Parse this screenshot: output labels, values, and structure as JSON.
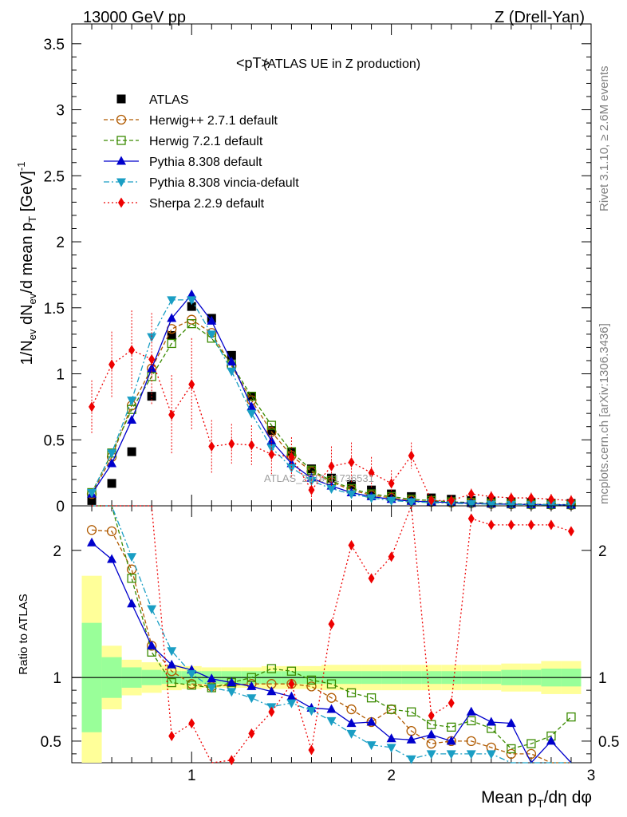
{
  "header": {
    "energy": "13000 GeV pp",
    "process": "Z (Drell-Yan)"
  },
  "side": {
    "rivet": "Rivet 3.1.10, ≥ 2.6M events",
    "mcplots": "mcplots.cern.ch [arXiv:1306.3436]"
  },
  "chart_data": [
    {
      "type": "line",
      "title": "<pT>",
      "subtitle": "(ATLAS UE in Z production)",
      "watermark": "ATLAS_2019_I1736531",
      "ylabel": "1/N_ev dN_ev/d mean p_T [GeV]^-1",
      "xlim": [
        0.4,
        3.0
      ],
      "ylim": [
        0,
        3.65
      ],
      "yticks": [
        0,
        0.5,
        1,
        1.5,
        2,
        2.5,
        3,
        3.5
      ],
      "ytick_labels": [
        "0",
        "0.5",
        "1",
        "1.5",
        "2",
        "2.5",
        "3",
        "3.5"
      ],
      "x": [
        0.5,
        0.6,
        0.7,
        0.8,
        0.9,
        1.0,
        1.1,
        1.2,
        1.3,
        1.4,
        1.5,
        1.6,
        1.7,
        1.8,
        1.9,
        2.0,
        2.1,
        2.2,
        2.3,
        2.4,
        2.5,
        2.6,
        2.7,
        2.8,
        2.9
      ],
      "series": [
        {
          "name": "ATLAS",
          "color": "#000000",
          "marker": "square-filled",
          "dash": "none",
          "values": [
            0.04,
            0.17,
            0.41,
            0.83,
            1.29,
            1.51,
            1.42,
            1.14,
            0.83,
            0.57,
            0.41,
            0.28,
            0.21,
            0.16,
            0.12,
            0.09,
            0.07,
            0.06,
            0.05,
            0.04,
            0.035,
            0.03,
            0.025,
            0.02,
            0.018
          ]
        },
        {
          "name": "Herwig++ 2.7.1 default",
          "color": "#b05a00",
          "marker": "circle-open",
          "dash": "5,3",
          "values": [
            0.09,
            0.37,
            0.76,
            1.04,
            1.34,
            1.41,
            1.31,
            1.06,
            0.8,
            0.56,
            0.38,
            0.26,
            0.18,
            0.12,
            0.08,
            0.06,
            0.04,
            0.03,
            0.025,
            0.02,
            0.015,
            0.012,
            0.01,
            0.008,
            0.007
          ]
        },
        {
          "name": "Herwig 7.2.1 default",
          "color": "#3a8a00",
          "marker": "square-open",
          "dash": "5,3",
          "values": [
            0.1,
            0.4,
            0.73,
            0.98,
            1.23,
            1.38,
            1.27,
            1.07,
            0.83,
            0.61,
            0.41,
            0.27,
            0.19,
            0.13,
            0.09,
            0.07,
            0.05,
            0.04,
            0.03,
            0.025,
            0.02,
            0.015,
            0.012,
            0.01,
            0.009
          ]
        },
        {
          "name": "Pythia 8.308 default",
          "color": "#0000cc",
          "marker": "triangle-up",
          "dash": "none",
          "values": [
            0.09,
            0.32,
            0.65,
            1.04,
            1.42,
            1.6,
            1.4,
            1.09,
            0.75,
            0.49,
            0.32,
            0.21,
            0.15,
            0.1,
            0.07,
            0.05,
            0.035,
            0.03,
            0.025,
            0.02,
            0.015,
            0.012,
            0.01,
            0.008,
            0.007
          ]
        },
        {
          "name": "Pythia 8.308 vincia-default",
          "color": "#1a9ec4",
          "marker": "triangle-down",
          "dash": "7,3,2,3",
          "values": [
            0.1,
            0.4,
            0.8,
            1.28,
            1.56,
            1.56,
            1.3,
            1.02,
            0.7,
            0.44,
            0.29,
            0.19,
            0.13,
            0.09,
            0.06,
            0.04,
            0.03,
            0.025,
            0.02,
            0.015,
            0.012,
            0.01,
            0.008,
            0.007,
            0.006
          ]
        },
        {
          "name": "Sherpa 2.2.9 default",
          "color": "#ee0000",
          "marker": "diamond",
          "dash": "2,3",
          "values": [
            0.75,
            1.07,
            1.18,
            1.11,
            0.69,
            0.92,
            0.45,
            0.47,
            0.46,
            0.39,
            0.37,
            0.12,
            0.3,
            0.33,
            0.25,
            0.17,
            0.38,
            0.04,
            0.04,
            0.09,
            0.07,
            0.06,
            0.06,
            0.05,
            0.04
          ],
          "errors": [
            0.2,
            0.25,
            0.3,
            0.35,
            0.3,
            0.35,
            0.2,
            0.15,
            0.15,
            0.15,
            0.15,
            0.08,
            0.15,
            0.15,
            0.12,
            0.1,
            0.1,
            0.04,
            0.04,
            0.04,
            0.04,
            0.04,
            0.04,
            0.04,
            0.04
          ]
        }
      ]
    },
    {
      "type": "line",
      "ylabel": "Ratio to ATLAS",
      "xlabel": "Mean p_T/dη dφ",
      "xlim": [
        0.4,
        3.0
      ],
      "ylim": [
        0.33,
        2.35
      ],
      "xticks": [
        1,
        2,
        3
      ],
      "xtick_labels": [
        "1",
        "2",
        "3"
      ],
      "yticks": [
        0.5,
        1,
        2
      ],
      "ytick_labels": [
        "0.5",
        "1",
        "2"
      ],
      "band_inner": [
        0.43,
        0.16,
        0.08,
        0.06,
        0.05,
        0.05,
        0.05,
        0.05,
        0.05,
        0.05,
        0.05,
        0.05,
        0.05,
        0.05,
        0.05,
        0.05,
        0.05,
        0.05,
        0.05,
        0.05,
        0.05,
        0.06,
        0.06,
        0.07,
        0.07
      ],
      "band_outer": [
        0.8,
        0.25,
        0.14,
        0.12,
        0.1,
        0.09,
        0.08,
        0.08,
        0.08,
        0.09,
        0.09,
        0.09,
        0.1,
        0.1,
        0.1,
        0.1,
        0.1,
        0.1,
        0.1,
        0.1,
        0.1,
        0.11,
        0.11,
        0.13,
        0.13
      ],
      "series": [
        {
          "name": "Herwig++ 2.7.1 default",
          "values": [
            2.16,
            2.15,
            1.85,
            1.25,
            1.05,
            0.95,
            0.93,
            0.94,
            0.95,
            0.95,
            0.95,
            0.93,
            0.84,
            0.75,
            0.65,
            0.75,
            0.58,
            0.48,
            0.5,
            0.5,
            0.45,
            0.4,
            0.4,
            0.33,
            0.3
          ]
        },
        {
          "name": "Herwig 7.2.1 default",
          "values": [
            2.35,
            2.35,
            1.78,
            1.2,
            0.96,
            0.94,
            0.92,
            0.96,
            1.0,
            1.07,
            1.05,
            0.98,
            0.95,
            0.88,
            0.84,
            0.75,
            0.73,
            0.63,
            0.61,
            0.66,
            0.6,
            0.44,
            0.48,
            0.54,
            0.69
          ]
        },
        {
          "name": "Pythia 8.308 default",
          "values": [
            2.06,
            1.93,
            1.58,
            1.25,
            1.1,
            1.06,
            0.99,
            0.96,
            0.93,
            0.89,
            0.85,
            0.76,
            0.75,
            0.64,
            0.65,
            0.52,
            0.51,
            0.55,
            0.5,
            0.73,
            0.65,
            0.64,
            0.3,
            0.5,
            0.3
          ]
        },
        {
          "name": "Pythia 8.308 vincia-default",
          "values": [
            2.35,
            2.35,
            1.95,
            1.54,
            1.21,
            1.03,
            0.92,
            0.89,
            0.84,
            0.77,
            0.8,
            0.74,
            0.66,
            0.56,
            0.47,
            0.45,
            0.36,
            0.4,
            0.4,
            0.4,
            0.4,
            0.33,
            0.33,
            0.33,
            0.33
          ]
        },
        {
          "name": "Sherpa 2.2.9 default",
          "values": [
            2.35,
            2.35,
            2.35,
            2.35,
            0.54,
            0.64,
            0.25,
            0.35,
            0.56,
            0.73,
            0.95,
            0.43,
            1.42,
            2.04,
            1.78,
            1.95,
            2.35,
            0.7,
            0.8,
            2.25,
            2.2,
            2.2,
            2.2,
            2.2,
            2.15
          ]
        }
      ]
    }
  ]
}
